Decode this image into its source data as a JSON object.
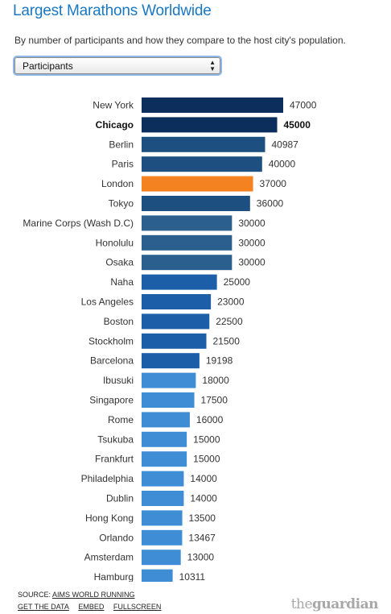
{
  "title": "Largest Marathons Worldwide",
  "subtitle": "By number of participants and how they compare to the host city's population.",
  "dropdown": {
    "selected": "Participants"
  },
  "colors": {
    "highlight": "#f58220",
    "selected_label_weight": "bold",
    "tiers": [
      "#0c2e5c",
      "#1d4f80",
      "#2a5f8e",
      "#1c5fa8",
      "#3f8dd5"
    ]
  },
  "chart_data": {
    "type": "bar",
    "orientation": "horizontal",
    "categories": [
      "New York",
      "Chicago",
      "Berlin",
      "Paris",
      "London",
      "Tokyo",
      "Marine Corps (Wash D.C)",
      "Honolulu",
      "Osaka",
      "Naha",
      "Los Angeles",
      "Boston",
      "Stockholm",
      "Barcelona",
      "Ibusuki",
      "Singapore",
      "Rome",
      "Tsukuba",
      "Frankfurt",
      "Philadelphia",
      "Dublin",
      "Hong Kong",
      "Orlando",
      "Amsterdam",
      "Hamburg"
    ],
    "values": [
      47000,
      45000,
      40987,
      40000,
      37000,
      36000,
      30000,
      30000,
      30000,
      25000,
      23000,
      22500,
      21500,
      19198,
      18000,
      17500,
      16000,
      15000,
      15000,
      14000,
      14000,
      13500,
      13467,
      13000,
      10311
    ],
    "selected": "Chicago",
    "highlighted": "London",
    "xlim": [
      0,
      47000
    ],
    "grid": false,
    "legend": "none"
  },
  "footer": {
    "source_prefix": "SOURCE: ",
    "source_link": "AIMS WORLD RUNNING",
    "links": [
      "GET THE DATA",
      "EMBED",
      "FULLSCREEN"
    ]
  },
  "logo": {
    "part1": "the",
    "part2": "guardian"
  }
}
